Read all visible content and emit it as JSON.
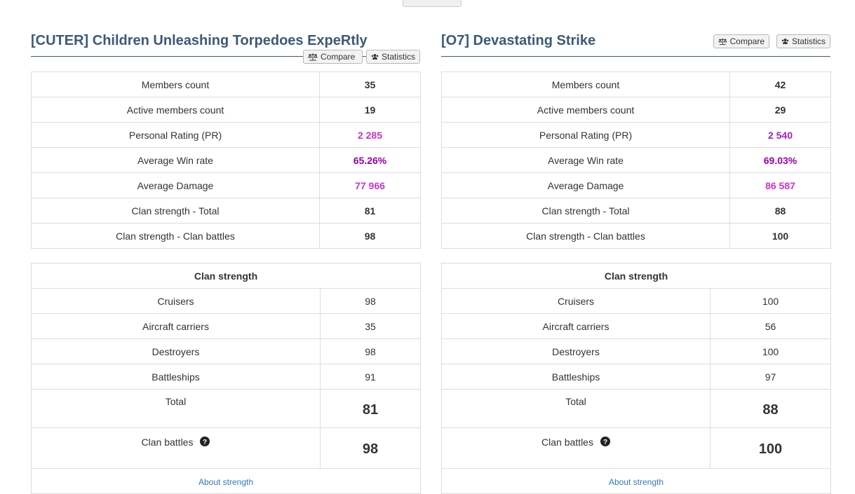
{
  "colors": {
    "title": "#3a5a78",
    "pr_purple": "#cc33cc",
    "pr_dark_purple": "#a020c0",
    "winrate_purple": "#9900aa",
    "link": "#337ab7"
  },
  "panels": [
    {
      "title": "[CUTER] Children Unleashing Torpedoes ExpeRtly",
      "compare_label": "Compare",
      "statistics_label": "Statistics",
      "stats": [
        {
          "label": "Members count",
          "value": "35",
          "color": "#333333"
        },
        {
          "label": "Active members count",
          "value": "19",
          "color": "#333333"
        },
        {
          "label": "Personal Rating (PR)",
          "value": "2 285",
          "color": "#cc33cc"
        },
        {
          "label": "Average Win rate",
          "value": "65.26%",
          "color": "#9900aa"
        },
        {
          "label": "Average Damage",
          "value": "77 966",
          "color": "#cc33cc"
        },
        {
          "label": "Clan strength - Total",
          "value": "81",
          "color": "#333333"
        },
        {
          "label": "Clan strength - Clan battles",
          "value": "98",
          "color": "#333333"
        }
      ],
      "strength": {
        "header": "Clan strength",
        "rows": [
          {
            "label": "Cruisers",
            "value": "98"
          },
          {
            "label": "Aircraft carriers",
            "value": "35"
          },
          {
            "label": "Destroyers",
            "value": "98"
          },
          {
            "label": "Battleships",
            "value": "91"
          }
        ],
        "total_label": "Total",
        "total_value": "81",
        "cb_label": "Clan battles",
        "cb_value": "98",
        "about_label": "About strength"
      }
    },
    {
      "title": "[O7] Devastating Strike",
      "compare_label": "Compare",
      "statistics_label": "Statistics",
      "stats": [
        {
          "label": "Members count",
          "value": "42",
          "color": "#333333"
        },
        {
          "label": "Active members count",
          "value": "29",
          "color": "#333333"
        },
        {
          "label": "Personal Rating (PR)",
          "value": "2 540",
          "color": "#a020c0"
        },
        {
          "label": "Average Win rate",
          "value": "69.03%",
          "color": "#9900aa"
        },
        {
          "label": "Average Damage",
          "value": "86 587",
          "color": "#cc33cc"
        },
        {
          "label": "Clan strength - Total",
          "value": "88",
          "color": "#333333"
        },
        {
          "label": "Clan strength - Clan battles",
          "value": "100",
          "color": "#333333"
        }
      ],
      "strength": {
        "header": "Clan strength",
        "rows": [
          {
            "label": "Cruisers",
            "value": "100"
          },
          {
            "label": "Aircraft carriers",
            "value": "56"
          },
          {
            "label": "Destroyers",
            "value": "100"
          },
          {
            "label": "Battleships",
            "value": "97"
          }
        ],
        "total_label": "Total",
        "total_value": "88",
        "cb_label": "Clan battles",
        "cb_value": "100",
        "about_label": "About strength"
      }
    }
  ]
}
